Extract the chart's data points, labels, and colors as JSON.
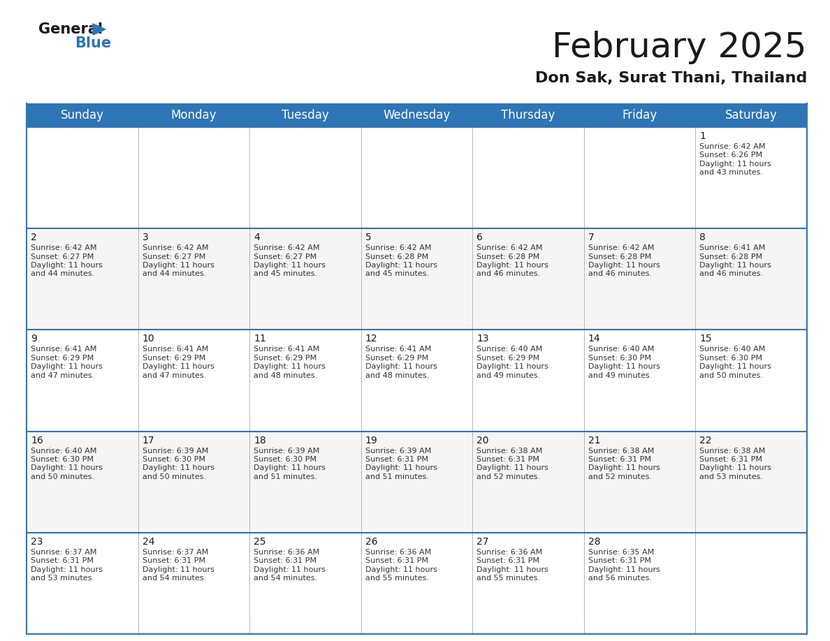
{
  "title": "February 2025",
  "subtitle": "Don Sak, Surat Thani, Thailand",
  "header_color": "#2E75B6",
  "header_text_color": "#FFFFFF",
  "day_names": [
    "Sunday",
    "Monday",
    "Tuesday",
    "Wednesday",
    "Thursday",
    "Friday",
    "Saturday"
  ],
  "title_fontsize": 36,
  "subtitle_fontsize": 16,
  "header_fontsize": 12,
  "day_num_fontsize": 10,
  "cell_fontsize": 8,
  "logo_general_color": "#1a1a1a",
  "logo_blue_color": "#2E75B6",
  "calendar": [
    [
      null,
      null,
      null,
      null,
      null,
      null,
      {
        "day": 1,
        "sunrise": "6:42 AM",
        "sunset": "6:26 PM",
        "daylight_hours": 11,
        "daylight_minutes": 43
      }
    ],
    [
      {
        "day": 2,
        "sunrise": "6:42 AM",
        "sunset": "6:27 PM",
        "daylight_hours": 11,
        "daylight_minutes": 44
      },
      {
        "day": 3,
        "sunrise": "6:42 AM",
        "sunset": "6:27 PM",
        "daylight_hours": 11,
        "daylight_minutes": 44
      },
      {
        "day": 4,
        "sunrise": "6:42 AM",
        "sunset": "6:27 PM",
        "daylight_hours": 11,
        "daylight_minutes": 45
      },
      {
        "day": 5,
        "sunrise": "6:42 AM",
        "sunset": "6:28 PM",
        "daylight_hours": 11,
        "daylight_minutes": 45
      },
      {
        "day": 6,
        "sunrise": "6:42 AM",
        "sunset": "6:28 PM",
        "daylight_hours": 11,
        "daylight_minutes": 46
      },
      {
        "day": 7,
        "sunrise": "6:42 AM",
        "sunset": "6:28 PM",
        "daylight_hours": 11,
        "daylight_minutes": 46
      },
      {
        "day": 8,
        "sunrise": "6:41 AM",
        "sunset": "6:28 PM",
        "daylight_hours": 11,
        "daylight_minutes": 46
      }
    ],
    [
      {
        "day": 9,
        "sunrise": "6:41 AM",
        "sunset": "6:29 PM",
        "daylight_hours": 11,
        "daylight_minutes": 47
      },
      {
        "day": 10,
        "sunrise": "6:41 AM",
        "sunset": "6:29 PM",
        "daylight_hours": 11,
        "daylight_minutes": 47
      },
      {
        "day": 11,
        "sunrise": "6:41 AM",
        "sunset": "6:29 PM",
        "daylight_hours": 11,
        "daylight_minutes": 48
      },
      {
        "day": 12,
        "sunrise": "6:41 AM",
        "sunset": "6:29 PM",
        "daylight_hours": 11,
        "daylight_minutes": 48
      },
      {
        "day": 13,
        "sunrise": "6:40 AM",
        "sunset": "6:29 PM",
        "daylight_hours": 11,
        "daylight_minutes": 49
      },
      {
        "day": 14,
        "sunrise": "6:40 AM",
        "sunset": "6:30 PM",
        "daylight_hours": 11,
        "daylight_minutes": 49
      },
      {
        "day": 15,
        "sunrise": "6:40 AM",
        "sunset": "6:30 PM",
        "daylight_hours": 11,
        "daylight_minutes": 50
      }
    ],
    [
      {
        "day": 16,
        "sunrise": "6:40 AM",
        "sunset": "6:30 PM",
        "daylight_hours": 11,
        "daylight_minutes": 50
      },
      {
        "day": 17,
        "sunrise": "6:39 AM",
        "sunset": "6:30 PM",
        "daylight_hours": 11,
        "daylight_minutes": 50
      },
      {
        "day": 18,
        "sunrise": "6:39 AM",
        "sunset": "6:30 PM",
        "daylight_hours": 11,
        "daylight_minutes": 51
      },
      {
        "day": 19,
        "sunrise": "6:39 AM",
        "sunset": "6:31 PM",
        "daylight_hours": 11,
        "daylight_minutes": 51
      },
      {
        "day": 20,
        "sunrise": "6:38 AM",
        "sunset": "6:31 PM",
        "daylight_hours": 11,
        "daylight_minutes": 52
      },
      {
        "day": 21,
        "sunrise": "6:38 AM",
        "sunset": "6:31 PM",
        "daylight_hours": 11,
        "daylight_minutes": 52
      },
      {
        "day": 22,
        "sunrise": "6:38 AM",
        "sunset": "6:31 PM",
        "daylight_hours": 11,
        "daylight_minutes": 53
      }
    ],
    [
      {
        "day": 23,
        "sunrise": "6:37 AM",
        "sunset": "6:31 PM",
        "daylight_hours": 11,
        "daylight_minutes": 53
      },
      {
        "day": 24,
        "sunrise": "6:37 AM",
        "sunset": "6:31 PM",
        "daylight_hours": 11,
        "daylight_minutes": 54
      },
      {
        "day": 25,
        "sunrise": "6:36 AM",
        "sunset": "6:31 PM",
        "daylight_hours": 11,
        "daylight_minutes": 54
      },
      {
        "day": 26,
        "sunrise": "6:36 AM",
        "sunset": "6:31 PM",
        "daylight_hours": 11,
        "daylight_minutes": 55
      },
      {
        "day": 27,
        "sunrise": "6:36 AM",
        "sunset": "6:31 PM",
        "daylight_hours": 11,
        "daylight_minutes": 55
      },
      {
        "day": 28,
        "sunrise": "6:35 AM",
        "sunset": "6:31 PM",
        "daylight_hours": 11,
        "daylight_minutes": 56
      },
      null
    ]
  ],
  "border_color": "#2E75B6",
  "divider_color": "#AAAAAA",
  "cell_bg_even": "#FFFFFF",
  "cell_bg_odd": "#F5F5F5"
}
